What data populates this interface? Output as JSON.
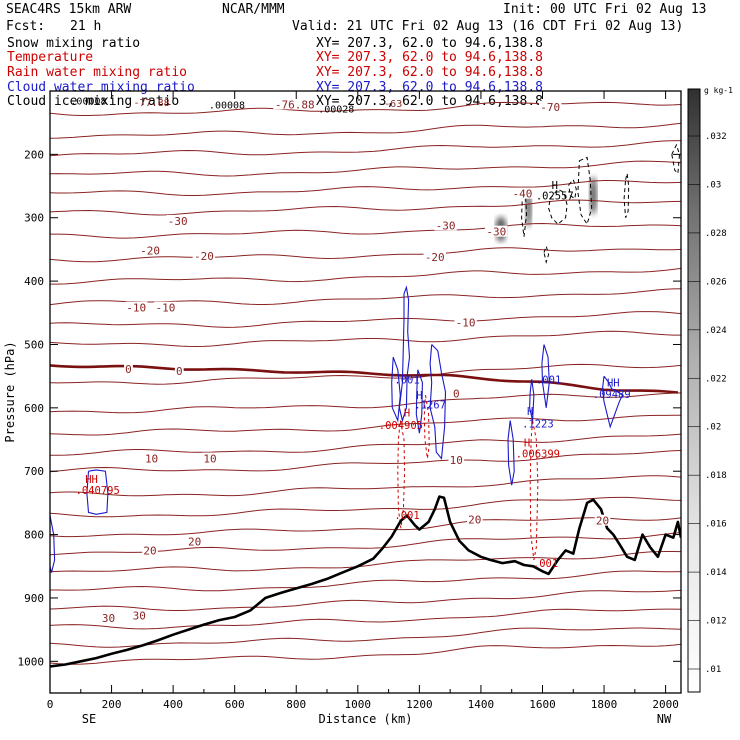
{
  "header": {
    "model": "SEAC4RS 15km ARW",
    "org": "NCAR/MMM",
    "init": "Init: 00 UTC Fri 02 Aug 13",
    "fcst_label": "Fcst:",
    "fcst_value": "21 h",
    "valid": "Valid: 21 UTC Fri 02 Aug 13 (16 CDT Fri 02 Aug 13)"
  },
  "legend": [
    {
      "name": "Snow mixing ratio",
      "xy": "XY= 207.3, 62.0 to  94.6,138.8",
      "color": "#000000"
    },
    {
      "name": "Temperature",
      "xy": "XY= 207.3, 62.0 to  94.6,138.8",
      "color": "#cc0000"
    },
    {
      "name": "Rain water mixing ratio",
      "xy": "XY= 207.3, 62.0 to  94.6,138.8",
      "color": "#cc0000"
    },
    {
      "name": "Cloud water mixing ratio",
      "xy": "XY= 207.3, 62.0 to  94.6,138.8",
      "color": "#1a1acc"
    },
    {
      "name": "Cloud ice mixing ratio",
      "xy": "XY= 207.3, 62.0 to  94.6,138.8",
      "color": "#000000"
    }
  ],
  "colors": {
    "isotherm": "#8b2323",
    "zero_isotherm": "#7a1010",
    "cloud_water": "#1a1acc",
    "rain": "#cc0000",
    "terrain": "#000000"
  },
  "chart_data": {
    "type": "cross-section",
    "xlabel": "Distance (km)",
    "ylabel": "Pressure (hPa)",
    "xlim": [
      0,
      2050
    ],
    "ylim": [
      1050,
      100
    ],
    "x_ticks": [
      "0",
      "200",
      "400",
      "600",
      "800",
      "1000",
      "1200",
      "1400",
      "1600",
      "1800",
      "2000"
    ],
    "y_ticks": [
      "200",
      "300",
      "400",
      "500",
      "600",
      "700",
      "800",
      "900",
      "1000"
    ],
    "endpoint_left": "SE",
    "endpoint_right": "NW",
    "colorbar": {
      "unit": "g kg-1",
      "ticks": [
        ".032",
        ".03",
        ".028",
        ".026",
        ".024",
        ".022",
        ".02",
        ".018",
        ".016",
        ".014",
        ".012",
        ".01"
      ]
    },
    "terrain": [
      [
        0,
        1008
      ],
      [
        50,
        1005
      ],
      [
        100,
        1000
      ],
      [
        150,
        995
      ],
      [
        200,
        988
      ],
      [
        250,
        982
      ],
      [
        300,
        975
      ],
      [
        350,
        967
      ],
      [
        400,
        958
      ],
      [
        450,
        950
      ],
      [
        500,
        942
      ],
      [
        550,
        935
      ],
      [
        600,
        930
      ],
      [
        650,
        920
      ],
      [
        700,
        900
      ],
      [
        750,
        892
      ],
      [
        800,
        885
      ],
      [
        850,
        878
      ],
      [
        900,
        870
      ],
      [
        950,
        860
      ],
      [
        1000,
        850
      ],
      [
        1050,
        838
      ],
      [
        1080,
        822
      ],
      [
        1110,
        803
      ],
      [
        1140,
        778
      ],
      [
        1160,
        770
      ],
      [
        1185,
        785
      ],
      [
        1200,
        792
      ],
      [
        1230,
        780
      ],
      [
        1250,
        760
      ],
      [
        1265,
        740
      ],
      [
        1280,
        742
      ],
      [
        1300,
        780
      ],
      [
        1330,
        810
      ],
      [
        1360,
        825
      ],
      [
        1400,
        835
      ],
      [
        1430,
        840
      ],
      [
        1470,
        845
      ],
      [
        1510,
        842
      ],
      [
        1540,
        848
      ],
      [
        1570,
        850
      ],
      [
        1600,
        858
      ],
      [
        1620,
        862
      ],
      [
        1650,
        840
      ],
      [
        1675,
        825
      ],
      [
        1700,
        830
      ],
      [
        1720,
        790
      ],
      [
        1745,
        750
      ],
      [
        1765,
        745
      ],
      [
        1790,
        760
      ],
      [
        1810,
        790
      ],
      [
        1830,
        800
      ],
      [
        1850,
        815
      ],
      [
        1875,
        835
      ],
      [
        1900,
        840
      ],
      [
        1925,
        800
      ],
      [
        1950,
        820
      ],
      [
        1975,
        835
      ],
      [
        2000,
        800
      ],
      [
        2025,
        805
      ],
      [
        2040,
        780
      ],
      [
        2050,
        805
      ]
    ],
    "isotherm_base": [
      [
        0,
        0
      ],
      [
        600,
        -2
      ],
      [
        1000,
        -6
      ],
      [
        1200,
        -8
      ],
      [
        1400,
        -12
      ],
      [
        1600,
        -14
      ],
      [
        1800,
        -16
      ],
      [
        2050,
        -18
      ]
    ],
    "isotherm_levels": [
      135,
      170,
      200,
      232,
      262,
      292,
      328,
      365,
      400,
      435,
      470,
      500,
      560,
      605,
      640,
      672,
      700,
      738,
      770,
      800,
      828,
      858,
      888,
      918,
      946,
      974,
      1000
    ],
    "zero_isotherm": [
      [
        0,
        533
      ],
      [
        300,
        536
      ],
      [
        700,
        542
      ],
      [
        1000,
        545
      ],
      [
        1300,
        550
      ],
      [
        1600,
        560
      ],
      [
        1800,
        570
      ],
      [
        2050,
        577
      ]
    ],
    "temperature_labels": [
      {
        "text": "-40",
        "x": 1535,
        "p": 262
      },
      {
        "text": "-30",
        "x": 1450,
        "p": 322
      },
      {
        "text": "-30",
        "x": 1285,
        "p": 312
      },
      {
        "text": "-30",
        "x": 415,
        "p": 305
      },
      {
        "text": "-20",
        "x": 325,
        "p": 352
      },
      {
        "text": "-20",
        "x": 500,
        "p": 360
      },
      {
        "text": "-20",
        "x": 1250,
        "p": 362
      },
      {
        "text": "-10",
        "x": 280,
        "p": 442
      },
      {
        "text": "-10",
        "x": 375,
        "p": 442
      },
      {
        "text": "-10",
        "x": 1350,
        "p": 465
      },
      {
        "text": "0",
        "x": 255,
        "p": 539
      },
      {
        "text": "0",
        "x": 420,
        "p": 542
      },
      {
        "text": "0",
        "x": 1320,
        "p": 577
      },
      {
        "text": "10",
        "x": 330,
        "p": 680
      },
      {
        "text": "10",
        "x": 520,
        "p": 680
      },
      {
        "text": "10",
        "x": 1320,
        "p": 682
      },
      {
        "text": "20",
        "x": 325,
        "p": 825
      },
      {
        "text": "20",
        "x": 470,
        "p": 811
      },
      {
        "text": "20",
        "x": 1380,
        "p": 776
      },
      {
        "text": "20",
        "x": 1795,
        "p": 778
      },
      {
        "text": "30",
        "x": 190,
        "p": 932
      },
      {
        "text": "30",
        "x": 290,
        "p": 928
      },
      {
        "text": "-70",
        "x": 1625,
        "p": 125
      },
      {
        "text": "-76.88",
        "x": 795,
        "p": 121
      }
    ],
    "top_labels": [
      {
        "text": ".00008",
        "x": 125,
        "p": 115,
        "color": "#000000"
      },
      {
        "text": "-77.88",
        "x": 330,
        "p": 117,
        "color": "#8b2323"
      },
      {
        "text": ".00008",
        "x": 575,
        "p": 121,
        "color": "#000000"
      },
      {
        "text": "-63",
        "x": 1115,
        "p": 119,
        "color": "#8b2323"
      },
      {
        "text": ".00028",
        "x": 930,
        "p": 128,
        "color": "#000000"
      }
    ],
    "field_labels": [
      {
        "text": "H",
        "x": 1640,
        "p": 248,
        "color": "#000000"
      },
      {
        "text": ".02557",
        "x": 1640,
        "p": 265,
        "color": "#000000"
      },
      {
        "text": ".001",
        "x": 1160,
        "p": 555,
        "color": "#1a1acc"
      },
      {
        "text": "H",
        "x": 1200,
        "p": 580,
        "color": "#1a1acc"
      },
      {
        "text": ".1267",
        "x": 1235,
        "p": 595,
        "color": "#1a1acc"
      },
      {
        "text": "H",
        "x": 1160,
        "p": 607,
        "color": "#cc0000"
      },
      {
        "text": ".004905",
        "x": 1140,
        "p": 627,
        "color": "#cc0000"
      },
      {
        "text": ".001",
        "x": 1620,
        "p": 555,
        "color": "#1a1acc"
      },
      {
        "text": "H",
        "x": 1560,
        "p": 605,
        "color": "#1a1acc"
      },
      {
        "text": ".1223",
        "x": 1585,
        "p": 625,
        "color": "#1a1acc"
      },
      {
        "text": "H",
        "x": 1550,
        "p": 655,
        "color": "#cc0000"
      },
      {
        "text": ".006399",
        "x": 1585,
        "p": 672,
        "color": "#cc0000"
      },
      {
        "text": "HH",
        "x": 1830,
        "p": 560,
        "color": "#1a1acc"
      },
      {
        "text": ".09489",
        "x": 1825,
        "p": 578,
        "color": "#1a1acc"
      },
      {
        "text": "HH",
        "x": 135,
        "p": 712,
        "color": "#cc0000"
      },
      {
        "text": ".040795",
        "x": 155,
        "p": 730,
        "color": "#cc0000"
      },
      {
        "text": ".001",
        "x": 1160,
        "p": 769,
        "color": "#cc0000"
      },
      {
        "text": ".001",
        "x": 1610,
        "p": 845,
        "color": "#cc0000"
      }
    ],
    "cloud_water_contours": [
      [
        [
          1150,
          420
        ],
        [
          1158,
          410
        ],
        [
          1165,
          430
        ],
        [
          1162,
          480
        ],
        [
          1168,
          520
        ],
        [
          1160,
          550
        ],
        [
          1158,
          600
        ],
        [
          1145,
          620
        ],
        [
          1135,
          600
        ],
        [
          1145,
          560
        ],
        [
          1148,
          500
        ],
        [
          1150,
          460
        ],
        [
          1150,
          420
        ]
      ],
      [
        [
          1115,
          520
        ],
        [
          1130,
          540
        ],
        [
          1138,
          580
        ],
        [
          1130,
          620
        ],
        [
          1112,
          600
        ],
        [
          1110,
          560
        ],
        [
          1115,
          520
        ]
      ],
      [
        [
          1240,
          500
        ],
        [
          1260,
          510
        ],
        [
          1272,
          545
        ],
        [
          1285,
          575
        ],
        [
          1282,
          630
        ],
        [
          1272,
          680
        ],
        [
          1255,
          670
        ],
        [
          1250,
          630
        ],
        [
          1235,
          600
        ],
        [
          1240,
          560
        ],
        [
          1235,
          530
        ],
        [
          1240,
          500
        ]
      ],
      [
        [
          1195,
          540
        ],
        [
          1210,
          560
        ],
        [
          1208,
          610
        ],
        [
          1200,
          640
        ],
        [
          1190,
          610
        ],
        [
          1192,
          570
        ],
        [
          1195,
          540
        ]
      ],
      [
        [
          1605,
          500
        ],
        [
          1618,
          520
        ],
        [
          1622,
          560
        ],
        [
          1612,
          600
        ],
        [
          1600,
          560
        ],
        [
          1598,
          530
        ],
        [
          1605,
          500
        ]
      ],
      [
        [
          1565,
          555
        ],
        [
          1572,
          580
        ],
        [
          1568,
          620
        ],
        [
          1558,
          600
        ],
        [
          1560,
          575
        ],
        [
          1565,
          555
        ]
      ],
      [
        [
          1495,
          620
        ],
        [
          1505,
          650
        ],
        [
          1508,
          700
        ],
        [
          1500,
          722
        ],
        [
          1490,
          690
        ],
        [
          1488,
          650
        ],
        [
          1495,
          620
        ]
      ],
      [
        [
          1800,
          550
        ],
        [
          1815,
          560
        ],
        [
          1825,
          570
        ],
        [
          1845,
          575
        ],
        [
          1860,
          580
        ],
        [
          1850,
          590
        ],
        [
          1835,
          610
        ],
        [
          1820,
          630
        ],
        [
          1810,
          610
        ],
        [
          1800,
          590
        ],
        [
          1795,
          570
        ],
        [
          1800,
          550
        ]
      ],
      [
        [
          125,
          700
        ],
        [
          150,
          698
        ],
        [
          180,
          700
        ],
        [
          188,
          735
        ],
        [
          185,
          765
        ],
        [
          150,
          768
        ],
        [
          125,
          765
        ],
        [
          120,
          735
        ],
        [
          125,
          700
        ]
      ],
      [
        [
          0,
          770
        ],
        [
          12,
          800
        ],
        [
          15,
          840
        ],
        [
          5,
          860
        ],
        [
          0,
          850
        ]
      ]
    ],
    "rain_contours": [
      [
        [
          1138,
          620
        ],
        [
          1150,
          650
        ],
        [
          1152,
          700
        ],
        [
          1148,
          760
        ],
        [
          1140,
          790
        ],
        [
          1132,
          760
        ],
        [
          1130,
          700
        ],
        [
          1132,
          650
        ],
        [
          1138,
          620
        ]
      ],
      [
        [
          1220,
          580
        ],
        [
          1230,
          610
        ],
        [
          1232,
          660
        ],
        [
          1226,
          680
        ],
        [
          1218,
          650
        ],
        [
          1216,
          610
        ],
        [
          1220,
          580
        ]
      ],
      [
        [
          1568,
          620
        ],
        [
          1580,
          650
        ],
        [
          1585,
          720
        ],
        [
          1580,
          820
        ],
        [
          1572,
          840
        ],
        [
          1562,
          800
        ],
        [
          1560,
          720
        ],
        [
          1563,
          650
        ],
        [
          1568,
          620
        ]
      ]
    ],
    "ice_contours": [
      [
        [
          1625,
          270
        ],
        [
          1650,
          255
        ],
        [
          1670,
          260
        ],
        [
          1680,
          280
        ],
        [
          1675,
          300
        ],
        [
          1650,
          310
        ],
        [
          1630,
          300
        ],
        [
          1620,
          285
        ],
        [
          1625,
          270
        ]
      ],
      [
        [
          1720,
          210
        ],
        [
          1745,
          205
        ],
        [
          1755,
          240
        ],
        [
          1760,
          285
        ],
        [
          1745,
          310
        ],
        [
          1725,
          295
        ],
        [
          1715,
          260
        ],
        [
          1720,
          210
        ]
      ],
      [
        [
          1685,
          248
        ],
        [
          1700,
          240
        ],
        [
          1710,
          255
        ],
        [
          1705,
          270
        ],
        [
          1690,
          265
        ],
        [
          1685,
          248
        ]
      ],
      [
        [
          1870,
          240
        ],
        [
          1875,
          230
        ],
        [
          1880,
          250
        ],
        [
          1878,
          290
        ],
        [
          1870,
          300
        ],
        [
          1865,
          270
        ],
        [
          1870,
          240
        ]
      ],
      [
        [
          1535,
          260
        ],
        [
          1545,
          265
        ],
        [
          1548,
          295
        ],
        [
          1540,
          330
        ],
        [
          1532,
          300
        ],
        [
          1535,
          260
        ]
      ],
      [
        [
          1605,
          355
        ],
        [
          1612,
          345
        ],
        [
          1620,
          358
        ],
        [
          1612,
          370
        ],
        [
          1605,
          355
        ]
      ],
      [
        [
          2020,
          200
        ],
        [
          2035,
          185
        ],
        [
          2045,
          200
        ],
        [
          2040,
          230
        ],
        [
          2030,
          225
        ],
        [
          2020,
          200
        ]
      ]
    ],
    "snow_blobs": [
      {
        "x": 1465,
        "p": 318,
        "rx": 18,
        "rp": 20
      },
      {
        "x": 1555,
        "p": 285,
        "rx": 10,
        "rp": 30
      },
      {
        "x": 1765,
        "p": 265,
        "rx": 12,
        "rp": 30
      }
    ]
  }
}
